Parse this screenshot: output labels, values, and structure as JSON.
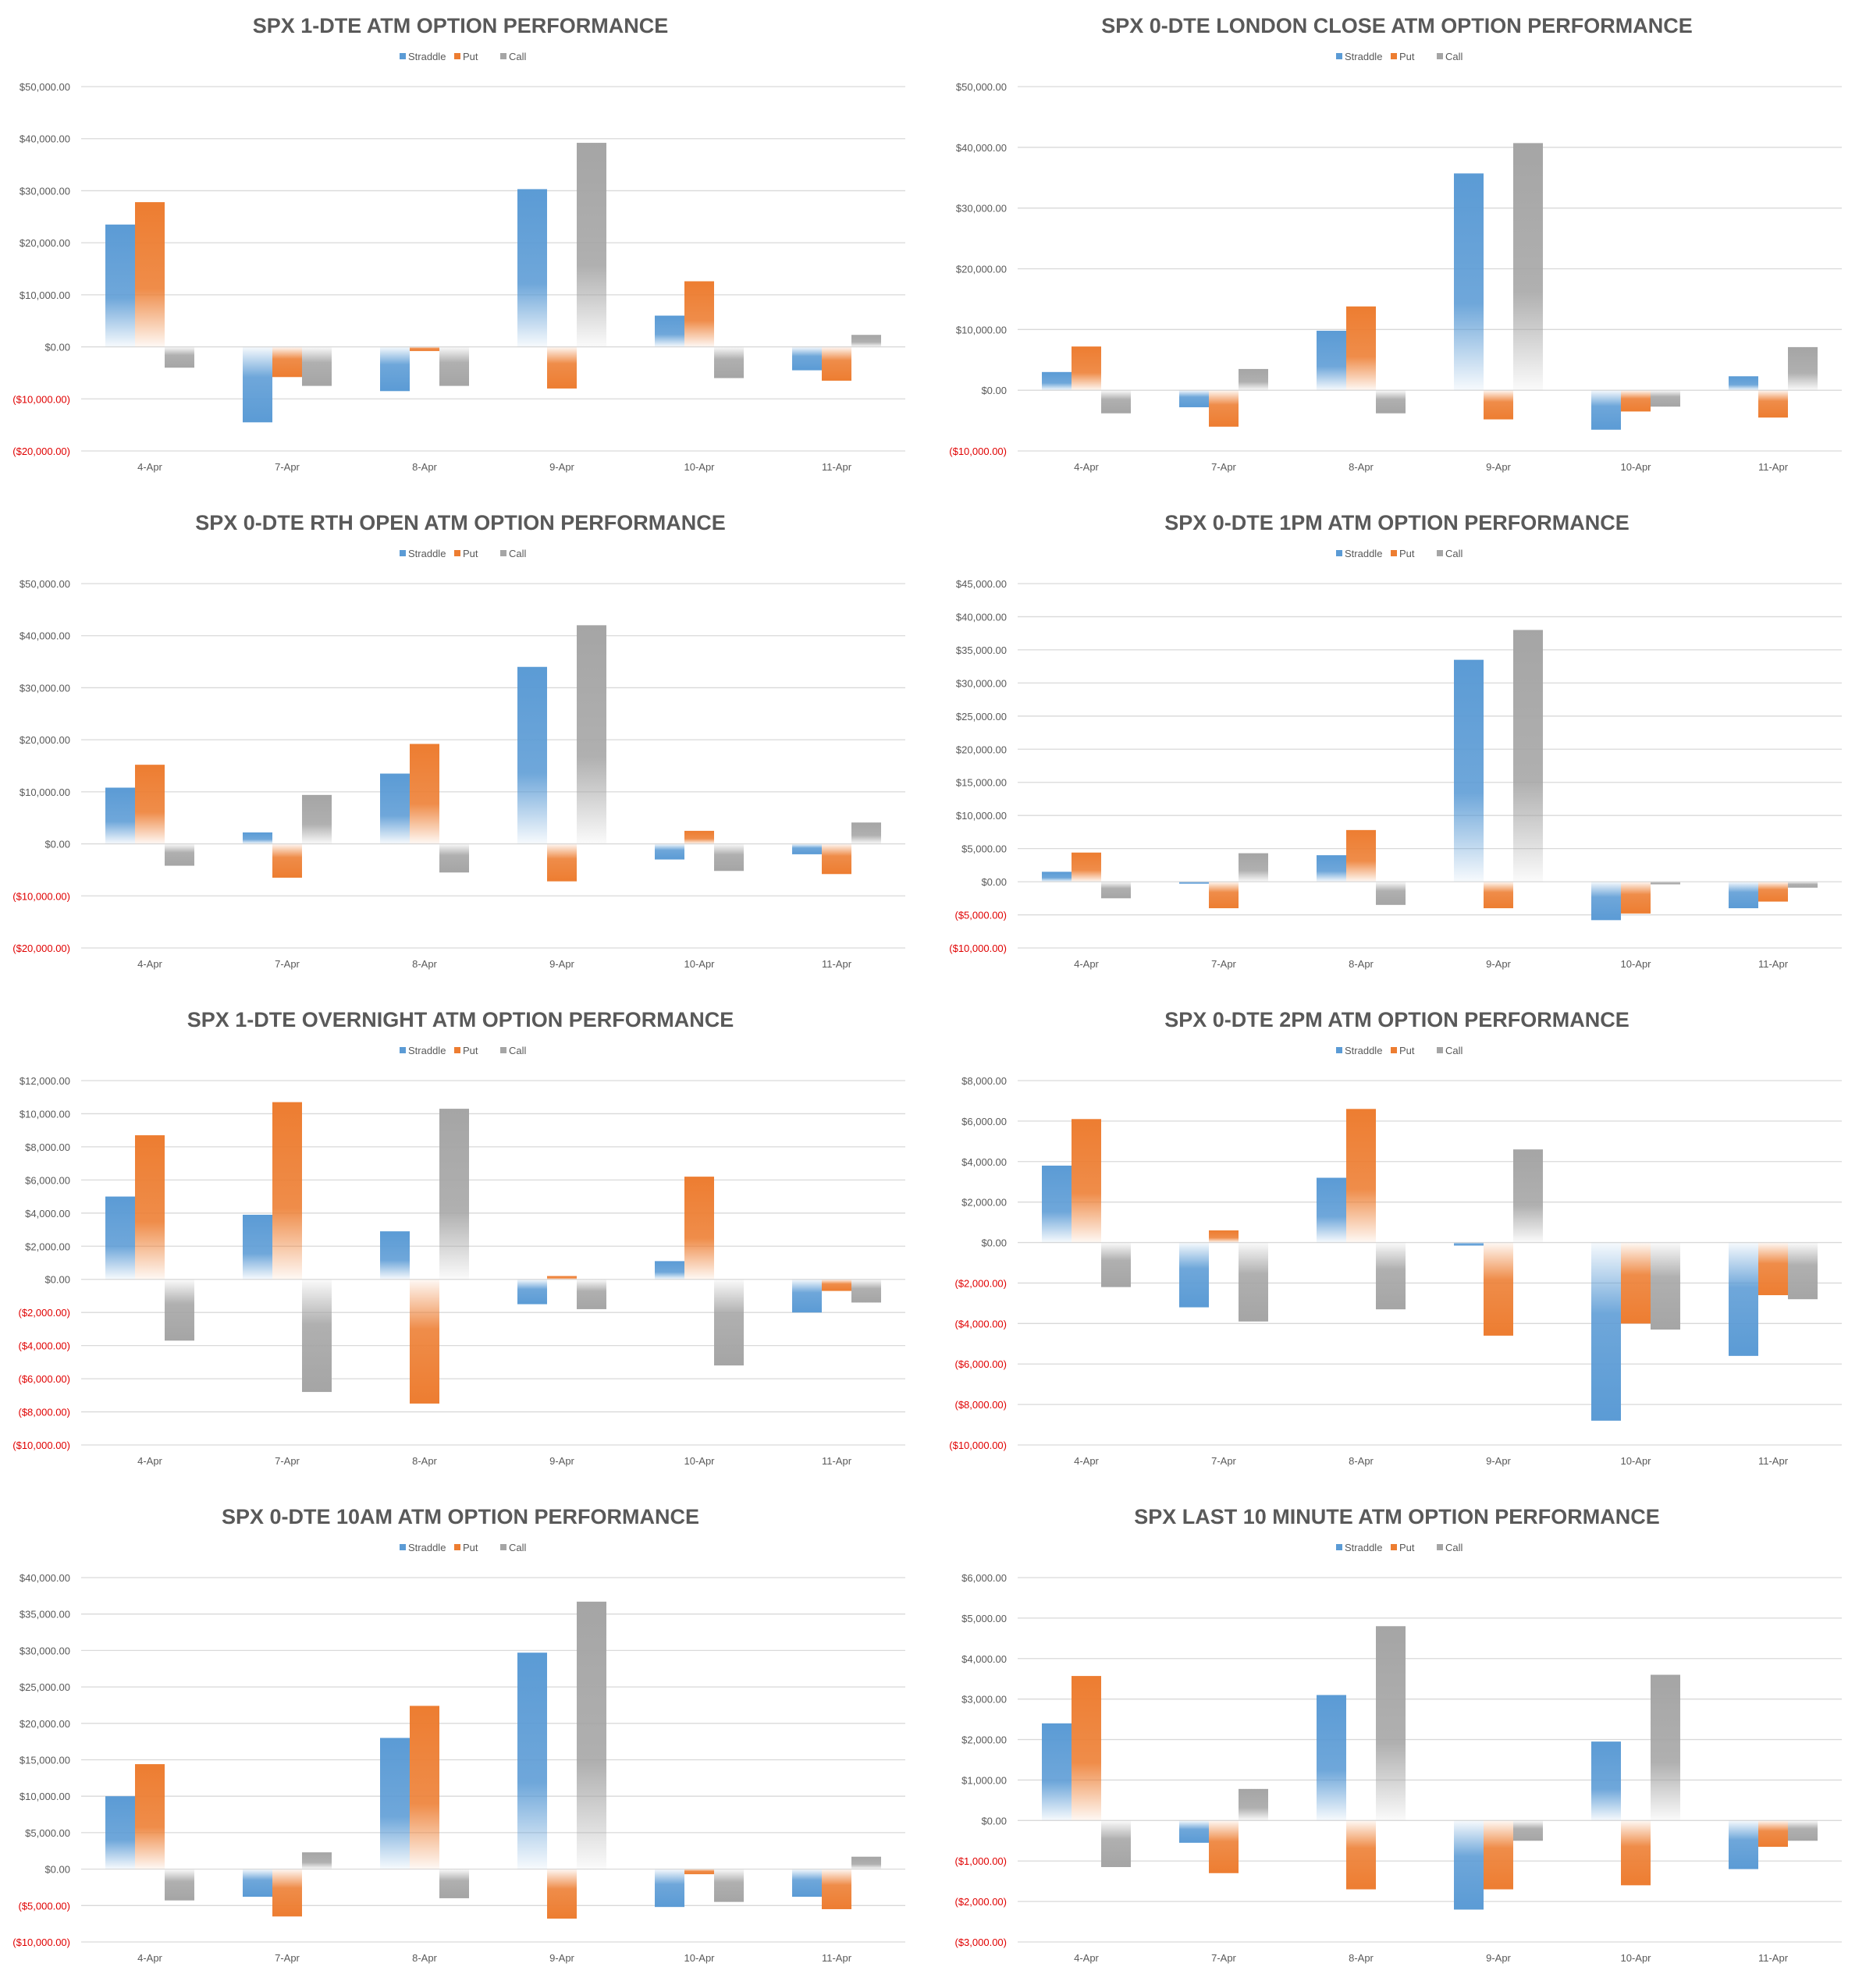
{
  "legend": [
    "Straddle",
    "Put",
    "Call"
  ],
  "colors": {
    "Straddle": "#5b9bd5",
    "Put": "#ed7d31",
    "Call": "#a5a5a5",
    "grid": "#d9d9d9",
    "negative_tick": "#e00000",
    "text": "#595959"
  },
  "chart_data": [
    {
      "type": "bar",
      "title": "SPX 1-DTE ATM OPTION PERFORMANCE",
      "categories": [
        "4-Apr",
        "7-Apr",
        "8-Apr",
        "9-Apr",
        "10-Apr",
        "11-Apr"
      ],
      "ylim": [
        -20000,
        50000
      ],
      "step": 10000,
      "ticks": [
        "$50,000.00",
        "$40,000.00",
        "$30,000.00",
        "$20,000.00",
        "$10,000.00",
        "$0.00",
        "($10,000.00)",
        "($20,000.00)"
      ],
      "series": [
        {
          "name": "Straddle",
          "values": [
            23500,
            -14500,
            -8500,
            30300,
            6000,
            -4500
          ]
        },
        {
          "name": "Put",
          "values": [
            27800,
            -5800,
            -800,
            -8000,
            12600,
            -6500
          ]
        },
        {
          "name": "Call",
          "values": [
            -4000,
            -7500,
            -7500,
            39200,
            -6000,
            2300
          ]
        }
      ]
    },
    {
      "type": "bar",
      "title": "SPX 0-DTE  LONDON CLOSE ATM OPTION PERFORMANCE",
      "categories": [
        "4-Apr",
        "7-Apr",
        "8-Apr",
        "9-Apr",
        "10-Apr",
        "11-Apr"
      ],
      "ylim": [
        -10000,
        50000
      ],
      "step": 10000,
      "ticks": [
        "$50,000.00",
        "$40,000.00",
        "$30,000.00",
        "$20,000.00",
        "$10,000.00",
        "$0.00",
        "($10,000.00)"
      ],
      "series": [
        {
          "name": "Straddle",
          "values": [
            3000,
            -2800,
            9800,
            35700,
            -6500,
            2300
          ]
        },
        {
          "name": "Put",
          "values": [
            7200,
            -6000,
            13800,
            -4800,
            -3500,
            -4500
          ]
        },
        {
          "name": "Call",
          "values": [
            -3800,
            3500,
            -3800,
            40700,
            -2700,
            7100
          ]
        }
      ]
    },
    {
      "type": "bar",
      "title": "SPX 0-DTE RTH OPEN ATM OPTION PERFORMANCE",
      "categories": [
        "4-Apr",
        "7-Apr",
        "8-Apr",
        "9-Apr",
        "10-Apr",
        "11-Apr"
      ],
      "ylim": [
        -20000,
        50000
      ],
      "step": 10000,
      "ticks": [
        "$50,000.00",
        "$40,000.00",
        "$30,000.00",
        "$20,000.00",
        "$10,000.00",
        "$0.00",
        "($10,000.00)",
        "($20,000.00)"
      ],
      "series": [
        {
          "name": "Straddle",
          "values": [
            10800,
            2200,
            13500,
            34000,
            -3000,
            -2000
          ]
        },
        {
          "name": "Put",
          "values": [
            15200,
            -6500,
            19200,
            -7200,
            2500,
            -5800
          ]
        },
        {
          "name": "Call",
          "values": [
            -4200,
            9400,
            -5500,
            42000,
            -5200,
            4100
          ]
        }
      ]
    },
    {
      "type": "bar",
      "title": "SPX 0-DTE 1PM ATM OPTION PERFORMANCE",
      "categories": [
        "4-Apr",
        "7-Apr",
        "8-Apr",
        "9-Apr",
        "10-Apr",
        "11-Apr"
      ],
      "ylim": [
        -10000,
        45000
      ],
      "step": 5000,
      "ticks": [
        "$45,000.00",
        "$40,000.00",
        "$35,000.00",
        "$30,000.00",
        "$25,000.00",
        "$20,000.00",
        "$15,000.00",
        "$10,000.00",
        "$5,000.00",
        "$0.00",
        "($5,000.00)",
        "($10,000.00)"
      ],
      "series": [
        {
          "name": "Straddle",
          "values": [
            1500,
            -300,
            4000,
            33500,
            -5800,
            -4000
          ]
        },
        {
          "name": "Put",
          "values": [
            4400,
            -4000,
            7800,
            -4000,
            -4800,
            -3000
          ]
        },
        {
          "name": "Call",
          "values": [
            -2500,
            4300,
            -3500,
            38000,
            -400,
            -900
          ]
        }
      ]
    },
    {
      "type": "bar",
      "title": "SPX 1-DTE OVERNIGHT ATM OPTION PERFORMANCE",
      "categories": [
        "4-Apr",
        "7-Apr",
        "8-Apr",
        "9-Apr",
        "10-Apr",
        "11-Apr"
      ],
      "ylim": [
        -10000,
        12000
      ],
      "step": 2000,
      "ticks": [
        "$12,000.00",
        "$10,000.00",
        "$8,000.00",
        "$6,000.00",
        "$4,000.00",
        "$2,000.00",
        "$0.00",
        "($2,000.00)",
        "($4,000.00)",
        "($6,000.00)",
        "($8,000.00)",
        "($10,000.00)"
      ],
      "series": [
        {
          "name": "Straddle",
          "values": [
            5000,
            3900,
            2900,
            -1500,
            1100,
            -2000
          ]
        },
        {
          "name": "Put",
          "values": [
            8700,
            10700,
            -7500,
            200,
            6200,
            -700
          ]
        },
        {
          "name": "Call",
          "values": [
            -3700,
            -6800,
            10300,
            -1800,
            -5200,
            -1400
          ]
        }
      ]
    },
    {
      "type": "bar",
      "title": "SPX 0-DTE 2PM ATM OPTION PERFORMANCE",
      "categories": [
        "4-Apr",
        "7-Apr",
        "8-Apr",
        "9-Apr",
        "10-Apr",
        "11-Apr"
      ],
      "ylim": [
        -10000,
        8000
      ],
      "step": 2000,
      "ticks": [
        "$8,000.00",
        "$6,000.00",
        "$4,000.00",
        "$2,000.00",
        "$0.00",
        "($2,000.00)",
        "($4,000.00)",
        "($6,000.00)",
        "($8,000.00)",
        "($10,000.00)"
      ],
      "series": [
        {
          "name": "Straddle",
          "values": [
            3800,
            -3200,
            3200,
            -150,
            -8800,
            -5600
          ]
        },
        {
          "name": "Put",
          "values": [
            6100,
            600,
            6600,
            -4600,
            -4000,
            -2600
          ]
        },
        {
          "name": "Call",
          "values": [
            -2200,
            -3900,
            -3300,
            4600,
            -4300,
            -2800
          ]
        }
      ]
    },
    {
      "type": "bar",
      "title": "SPX 0-DTE 10AM ATM OPTION PERFORMANCE",
      "categories": [
        "4-Apr",
        "7-Apr",
        "8-Apr",
        "9-Apr",
        "10-Apr",
        "11-Apr"
      ],
      "ylim": [
        -10000,
        40000
      ],
      "step": 5000,
      "ticks": [
        "$40,000.00",
        "$35,000.00",
        "$30,000.00",
        "$25,000.00",
        "$20,000.00",
        "$15,000.00",
        "$10,000.00",
        "$5,000.00",
        "$0.00",
        "($5,000.00)",
        "($10,000.00)"
      ],
      "series": [
        {
          "name": "Straddle",
          "values": [
            10000,
            -3800,
            18000,
            29700,
            -5200,
            -3800
          ]
        },
        {
          "name": "Put",
          "values": [
            14400,
            -6500,
            22400,
            -6800,
            -700,
            -5500
          ]
        },
        {
          "name": "Call",
          "values": [
            -4300,
            2300,
            -4000,
            36700,
            -4500,
            1700
          ]
        }
      ]
    },
    {
      "type": "bar",
      "title": "SPX LAST 10 MINUTE ATM OPTION PERFORMANCE",
      "categories": [
        "4-Apr",
        "7-Apr",
        "8-Apr",
        "9-Apr",
        "10-Apr",
        "11-Apr"
      ],
      "ylim": [
        -3000,
        6000
      ],
      "step": 1000,
      "ticks": [
        "$6,000.00",
        "$5,000.00",
        "$4,000.00",
        "$3,000.00",
        "$2,000.00",
        "$1,000.00",
        "$0.00",
        "($1,000.00)",
        "($2,000.00)",
        "($3,000.00)"
      ],
      "series": [
        {
          "name": "Straddle",
          "values": [
            2400,
            -550,
            3100,
            -2200,
            1950,
            -1200
          ]
        },
        {
          "name": "Put",
          "values": [
            3570,
            -1300,
            -1700,
            -1700,
            -1600,
            -650
          ]
        },
        {
          "name": "Call",
          "values": [
            -1150,
            780,
            4800,
            -500,
            3600,
            -500
          ]
        }
      ]
    }
  ]
}
